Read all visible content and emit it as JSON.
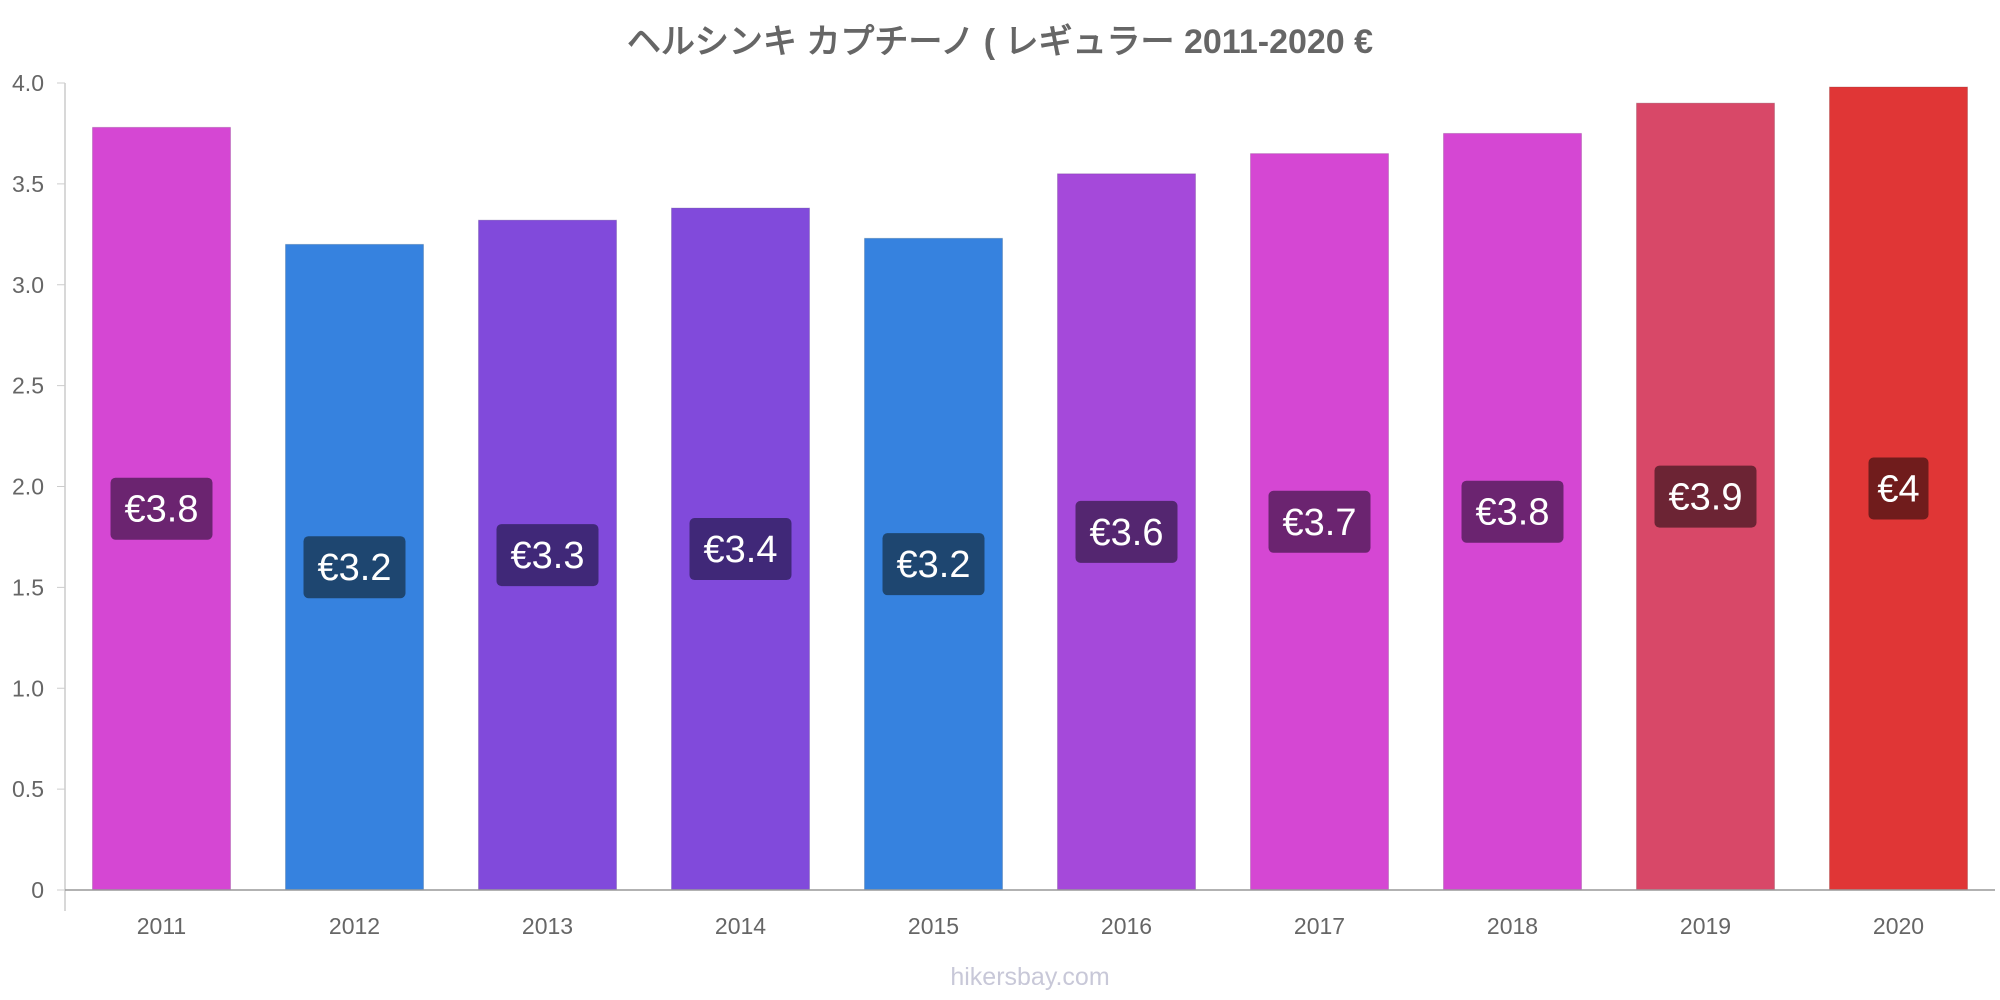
{
  "chart_data": {
    "type": "bar",
    "title": "ヘルシンキ カプチーノ ( レギュラー 2011-2020 €",
    "categories": [
      "2011",
      "2012",
      "2013",
      "2014",
      "2015",
      "2016",
      "2017",
      "2018",
      "2019",
      "2020"
    ],
    "values": [
      3.78,
      3.2,
      3.32,
      3.38,
      3.23,
      3.55,
      3.65,
      3.75,
      3.9,
      3.98
    ],
    "data_labels": [
      "€3.8",
      "€3.2",
      "€3.3",
      "€3.4",
      "€3.2",
      "€3.6",
      "€3.7",
      "€3.8",
      "€3.9",
      "€4"
    ],
    "bar_colors": [
      "#d547d3",
      "#3682df",
      "#814adb",
      "#814adb",
      "#3682df",
      "#a549da",
      "#d547d3",
      "#d547d3",
      "#d84868",
      "#e03636"
    ],
    "label_colors": [
      "#6b2470",
      "#1e4670",
      "#402878",
      "#402878",
      "#1e4670",
      "#542670",
      "#6b2470",
      "#6b2470",
      "#6c2434",
      "#701c1c"
    ],
    "y_ticks": [
      "0",
      "0.5",
      "1.0",
      "1.5",
      "2.0",
      "2.5",
      "3.0",
      "3.5",
      "4.0"
    ],
    "ylim": [
      0,
      4
    ],
    "xlabel": "",
    "ylabel": "",
    "grid": false,
    "legend": "none"
  },
  "watermark": "hikersbay.com"
}
